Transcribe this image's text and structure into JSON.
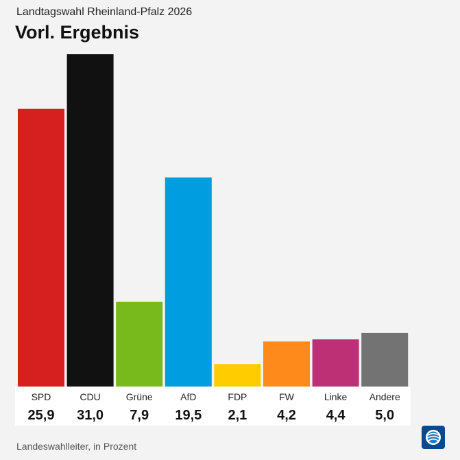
{
  "header": {
    "subtitle": "Landtagswahl Rheinland-Pfalz 2026",
    "title": "Vorl. Ergebnis"
  },
  "chart_data": {
    "type": "bar",
    "title": "Vorl. Ergebnis",
    "subtitle": "Landtagswahl Rheinland-Pfalz 2026",
    "categories": [
      "SPD",
      "CDU",
      "Grüne",
      "AfD",
      "FDP",
      "FW",
      "Linke",
      "Andere"
    ],
    "values": [
      25.9,
      31.0,
      7.9,
      19.5,
      2.1,
      4.2,
      4.4,
      5.0
    ],
    "value_labels": [
      "25,9",
      "31,0",
      "7,9",
      "19,5",
      "2,1",
      "4,2",
      "4,4",
      "5,0"
    ],
    "colors": [
      "#d61f1f",
      "#111111",
      "#78ba1c",
      "#009ee0",
      "#ffcc00",
      "#ff8a1c",
      "#be3075",
      "#737373"
    ],
    "unit": "Prozent",
    "xlabel": "",
    "ylabel": "",
    "ylim": [
      0,
      31.0
    ],
    "grid": false
  },
  "footer": {
    "source": "Landeswahlleiter, in Prozent"
  },
  "logo": {
    "icon": "tagesschau-logo-icon",
    "bg_color": "#0a4a8c"
  }
}
